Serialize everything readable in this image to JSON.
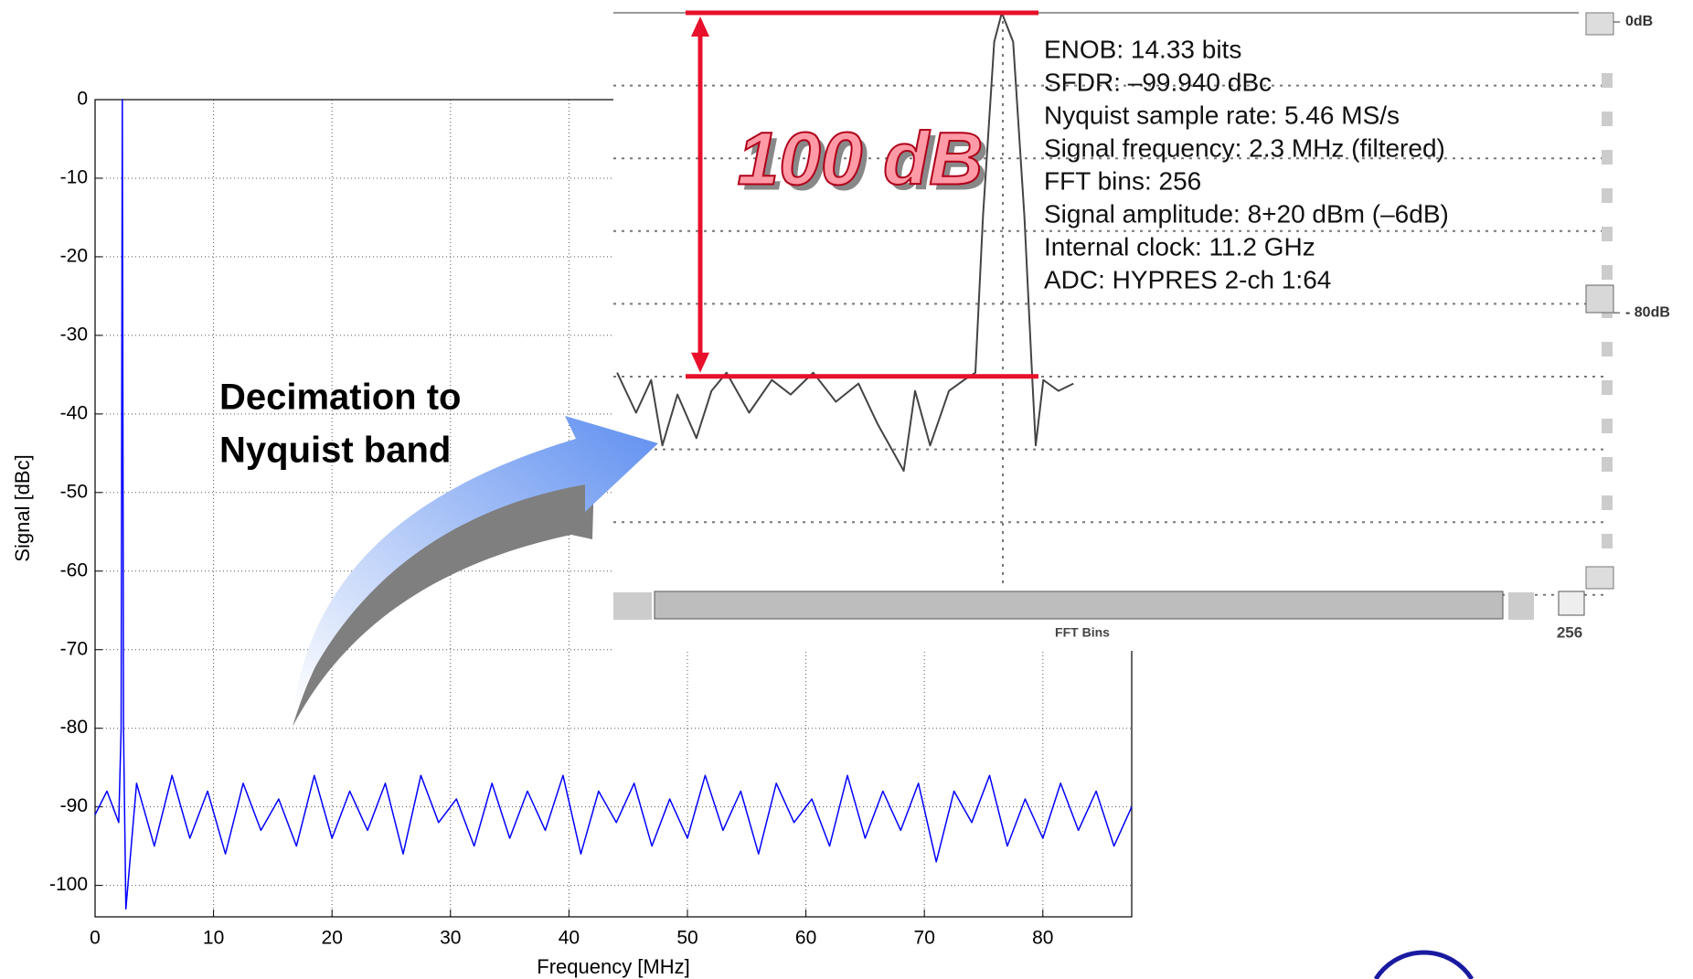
{
  "chart_data": [
    {
      "type": "line",
      "xlabel": "Frequency  [MHz]",
      "ylabel": "Signal [dBc]",
      "xlim": [
        0,
        87.5
      ],
      "ylim": [
        -104,
        0
      ],
      "xticks": [
        0,
        10,
        20,
        30,
        40,
        50,
        60,
        70,
        80
      ],
      "yticks": [
        0,
        -10,
        -20,
        -30,
        -40,
        -50,
        -60,
        -70,
        -80,
        -90,
        -100
      ],
      "grid": true,
      "annotation": [
        "Decimation to",
        "Nyquist band"
      ],
      "x": [
        0,
        1,
        2,
        2.2,
        2.3,
        2.4,
        2.6,
        3.5,
        5,
        6.5,
        8,
        9.5,
        11,
        12.5,
        14,
        15.5,
        17,
        18.5,
        20,
        21.5,
        23,
        24.5,
        26,
        27.5,
        29,
        30.5,
        32,
        33.5,
        35,
        36.5,
        38,
        39.5,
        41,
        42.5,
        44,
        45.5,
        47,
        48.5,
        50,
        51.5,
        53,
        54.5,
        56,
        57.5,
        59,
        60.5,
        62,
        63.5,
        65,
        66.5,
        68,
        69.5,
        71,
        72.5,
        74,
        75.5,
        77,
        78.5,
        80,
        81.5,
        83,
        84.5,
        86,
        87.5
      ],
      "series": [
        {
          "color": "#0000ff",
          "values": [
            -91,
            -88,
            -92,
            -80,
            0,
            -80,
            -103,
            -87,
            -95,
            -86,
            -94,
            -88,
            -96,
            -87,
            -93,
            -89,
            -95,
            -86,
            -94,
            -88,
            -93,
            -87,
            -96,
            -86,
            -92,
            -89,
            -95,
            -87,
            -94,
            -88,
            -93,
            -86,
            -96,
            -88,
            -92,
            -87,
            -95,
            -89,
            -94,
            -86,
            -93,
            -88,
            -96,
            -87,
            -92,
            -89,
            -95,
            -86,
            -94,
            -88,
            -93,
            -87,
            -97,
            -88,
            -92,
            -86,
            -95,
            -89,
            -94,
            -87,
            -93,
            -88,
            -95,
            -90
          ]
        }
      ]
    },
    {
      "type": "line",
      "xlabel": "FFT Bins",
      "xlim": [
        0,
        256
      ],
      "ylim": [
        -130,
        0
      ],
      "xticks": [
        256
      ],
      "yticks": [
        {
          "value": 0,
          "label": "0dB"
        },
        {
          "value": -80,
          "label": "- 80dB"
        }
      ],
      "annotation": "100 dB",
      "info": [
        "ENOB:  14.33 bits",
        "SFDR:  –99.940 dBc",
        "Nyquist sample rate:  5.46 MS/s",
        "Signal frequency:  2.3 MHz (filtered)",
        "FFT bins:  256",
        "Signal amplitude:  8+20 dBm (–6dB)",
        "Internal clock:  11.2 GHz",
        "ADC:  HYPRES 2-ch 1:64"
      ],
      "x": [
        1,
        6,
        10,
        13,
        17,
        22,
        26,
        30,
        36,
        42,
        47,
        53,
        59,
        65,
        70,
        77,
        80,
        84,
        89,
        93,
        96,
        98,
        101,
        103,
        106,
        109,
        111,
        112,
        114,
        118,
        122
      ],
      "series": [
        {
          "color": "#444444",
          "values": [
            -99,
            -110,
            -101,
            -119,
            -105,
            -117,
            -104,
            -99,
            -110,
            -101,
            -105,
            -99,
            -107,
            -102,
            -113,
            -126,
            -104,
            -119,
            -104,
            -101,
            -99,
            -56,
            -8,
            0,
            -8,
            -56,
            -99,
            -119,
            -101,
            -104,
            -102
          ]
        }
      ]
    }
  ]
}
